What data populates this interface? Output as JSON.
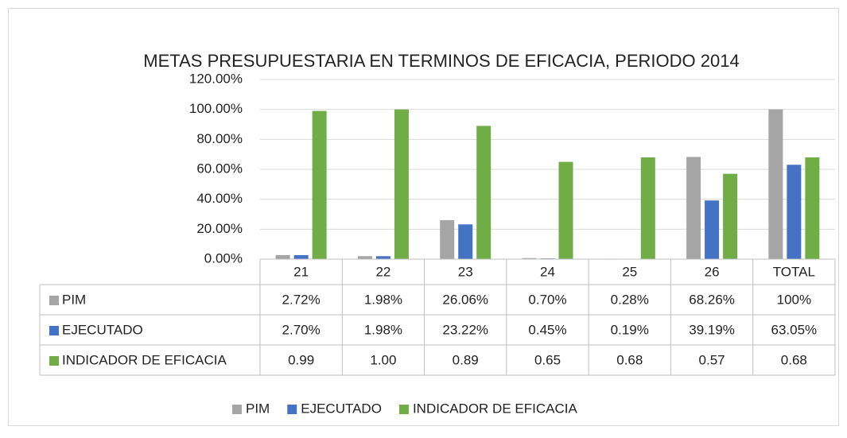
{
  "chart_data": {
    "type": "bar",
    "title": "METAS PRESUPUESTARIA EN TERMINOS DE EFICACIA, PERIODO 2014",
    "categories": [
      "21",
      "22",
      "23",
      "24",
      "25",
      "26",
      "TOTAL"
    ],
    "series": [
      {
        "name": "PIM",
        "color": "#a5a5a5",
        "values": [
          2.72,
          1.98,
          26.06,
          0.7,
          0.28,
          68.26,
          100
        ],
        "value_labels": [
          "2.72%",
          "1.98%",
          "26.06%",
          "0.70%",
          "0.28%",
          "68.26%",
          "100%"
        ]
      },
      {
        "name": "EJECUTADO",
        "color": "#4472c4",
        "values": [
          2.7,
          1.98,
          23.22,
          0.45,
          0.19,
          39.19,
          63.05
        ],
        "value_labels": [
          "2.70%",
          "1.98%",
          "23.22%",
          "0.45%",
          "0.19%",
          "39.19%",
          "63.05%"
        ]
      },
      {
        "name": "INDICADOR DE EFICACIA",
        "color": "#70ad47",
        "values": [
          99,
          100,
          89,
          65,
          68,
          57,
          68
        ],
        "value_labels": [
          "0.99",
          "1.00",
          "0.89",
          "0.65",
          "0.68",
          "0.57",
          "0.68"
        ]
      }
    ],
    "ylim": [
      0,
      120
    ],
    "yticks": [
      {
        "value": 0,
        "label": "0.00%"
      },
      {
        "value": 20,
        "label": "20.00%"
      },
      {
        "value": 40,
        "label": "40.00%"
      },
      {
        "value": 60,
        "label": "60.00%"
      },
      {
        "value": 80,
        "label": "80.00%"
      },
      {
        "value": 100,
        "label": "100.00%"
      },
      {
        "value": 120,
        "label": "120.00%"
      }
    ],
    "grid": true,
    "legend": "bottom"
  }
}
